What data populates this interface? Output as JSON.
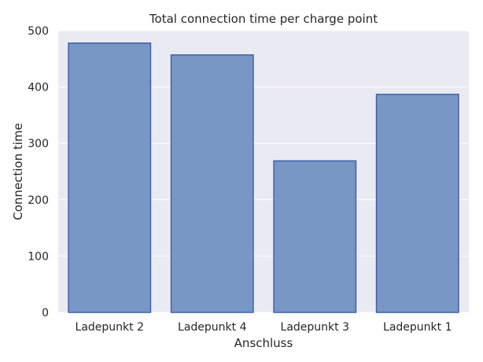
{
  "chart_data": {
    "type": "bar",
    "title": "Total connection time per charge point",
    "xlabel": "Anschluss",
    "ylabel": "Connection time",
    "categories": [
      "Ladepunkt 2",
      "Ladepunkt 4",
      "Ladepunkt 3",
      "Ladepunkt 1"
    ],
    "values": [
      478,
      457,
      269,
      387
    ],
    "ylim": [
      0,
      500
    ],
    "yticks": [
      0,
      100,
      200,
      300,
      400,
      500
    ],
    "grid": true,
    "colors": {
      "background": "#eaeaf2",
      "bar_fill": "#7897c5",
      "bar_edge": "#4062a8",
      "grid": "#ffffff"
    }
  }
}
